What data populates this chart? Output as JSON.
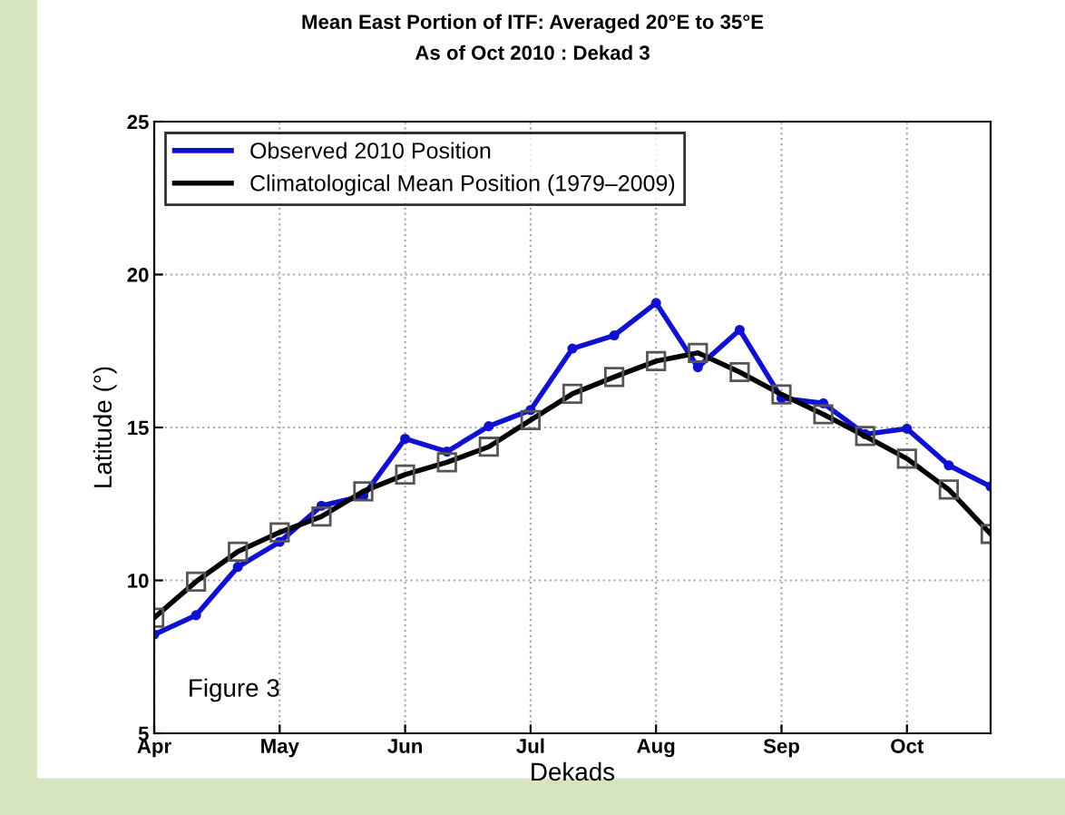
{
  "chart_data": {
    "type": "line",
    "title": "Mean East Portion of ITF: Averaged 20°E to 35°E",
    "subtitle": "As of Oct 2010 : Dekad 3",
    "xlabel": "Dekads",
    "ylabel": "Latitude (°)",
    "categories": [
      "Apr",
      null,
      null,
      "May",
      null,
      null,
      "Jun",
      null,
      null,
      "Jul",
      null,
      null,
      "Aug",
      null,
      null,
      "Sep",
      null,
      null,
      "Oct",
      null,
      null
    ],
    "ylim": [
      5,
      25
    ],
    "yticks": [
      5,
      10,
      15,
      20,
      25
    ],
    "series": [
      {
        "name": "Observed 2010 Position",
        "color": "#1010d0",
        "marker": "circle",
        "values": [
          8.23,
          8.86,
          10.44,
          11.26,
          12.44,
          12.76,
          14.63,
          14.21,
          15.04,
          15.57,
          17.58,
          18.01,
          19.07,
          16.97,
          18.19,
          15.96,
          15.79,
          14.78,
          14.96,
          13.76,
          13.07
        ]
      },
      {
        "name": "Climatological Mean Position (1979–2009)",
        "color": "#000000",
        "marker": "square",
        "values": [
          8.78,
          9.96,
          10.94,
          11.57,
          12.09,
          12.91,
          13.46,
          13.86,
          14.37,
          15.24,
          16.1,
          16.65,
          17.17,
          17.44,
          16.81,
          16.08,
          15.43,
          14.72,
          13.98,
          12.97,
          11.52
        ]
      }
    ],
    "annotations": [
      "Figure 3"
    ],
    "grid": true,
    "legend": "top left",
    "line_style": "solid"
  }
}
